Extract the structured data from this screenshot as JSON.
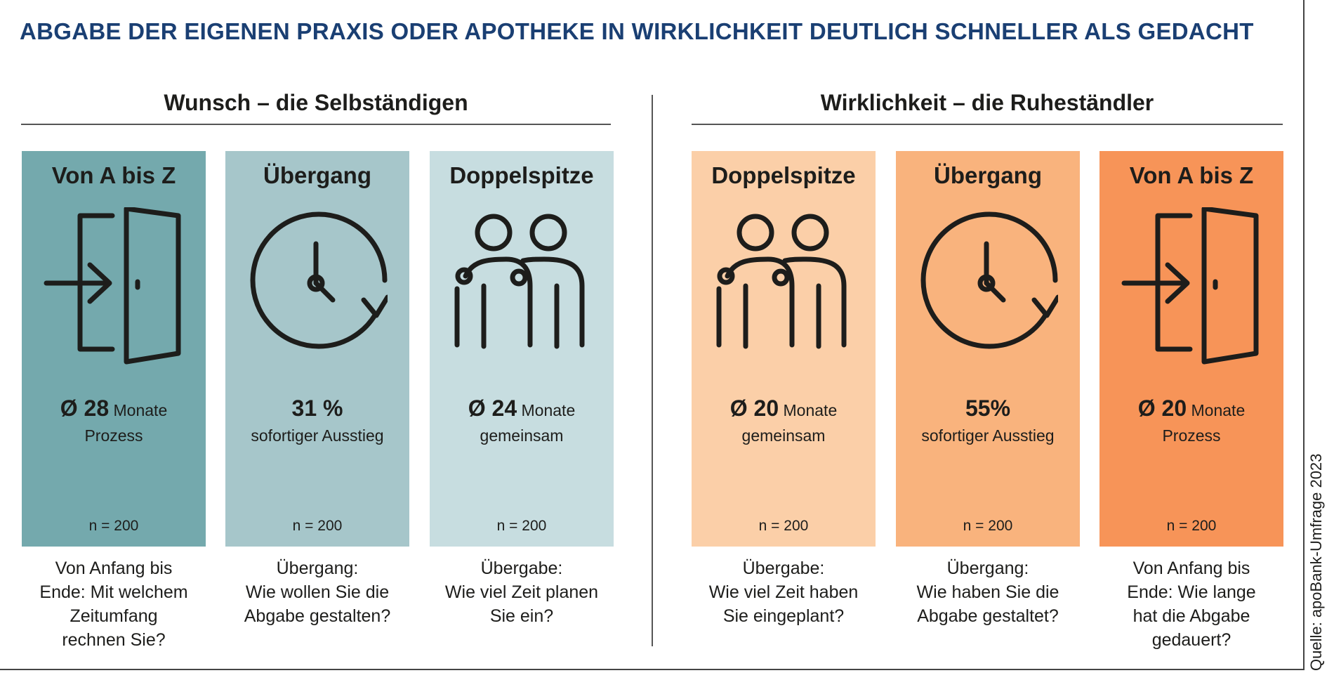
{
  "title": "ABGABE DER EIGENEN PRAXIS ODER APOTHEKE IN WIRKLICHKEIT DEUTLICH SCHNELLER ALS GEDACHT",
  "source": "Quelle: apoBank-Umfrage 2023",
  "colors": {
    "title": "#1a3f73",
    "teal_dark": "#74a9ad",
    "teal_mid": "#a6c6ca",
    "teal_light": "#c7dde0",
    "orange_light": "#fbcfa8",
    "orange_mid": "#f9b37d",
    "orange_dark": "#f79458"
  },
  "chart_data": {
    "type": "table",
    "sections": [
      {
        "label": "Wunsch – die Selbständigen",
        "panels": [
          {
            "title": "Von A bis Z",
            "icon": "door-enter-icon",
            "stat": "Ø 28",
            "unit": "Monate",
            "stat_label": "Prozess",
            "n": "n = 200",
            "question": [
              "Von Anfang bis",
              "Ende: Mit welchem",
              "Zeitumfang",
              "rechnen Sie?"
            ],
            "value": 28
          },
          {
            "title": "Übergang",
            "icon": "clock-icon",
            "stat": "31 %",
            "unit": "",
            "stat_label": "sofortiger Ausstieg",
            "n": "n = 200",
            "question": [
              "Übergang:",
              "Wie wollen Sie die",
              "Abgabe gestalten?"
            ],
            "value": 31
          },
          {
            "title": "Doppelspitze",
            "icon": "two-people-icon",
            "stat": "Ø 24",
            "unit": "Monate",
            "stat_label": "gemeinsam",
            "n": "n = 200",
            "question": [
              "Übergabe:",
              "Wie viel Zeit planen",
              "Sie ein?"
            ],
            "value": 24
          }
        ]
      },
      {
        "label": "Wirklichkeit – die Ruheständler",
        "panels": [
          {
            "title": "Doppelspitze",
            "icon": "two-people-icon",
            "stat": "Ø 20",
            "unit": "Monate",
            "stat_label": "gemeinsam",
            "n": "n = 200",
            "question": [
              "Übergabe:",
              "Wie viel Zeit haben",
              "Sie eingeplant?"
            ],
            "value": 20
          },
          {
            "title": "Übergang",
            "icon": "clock-icon",
            "stat": "55%",
            "unit": "",
            "stat_label": "sofortiger Ausstieg",
            "n": "n = 200",
            "question": [
              "Übergang:",
              "Wie haben Sie die",
              "Abgabe gestaltet?"
            ],
            "value": 55
          },
          {
            "title": "Von A bis Z",
            "icon": "door-enter-icon",
            "stat": "Ø 20",
            "unit": "Monate",
            "stat_label": "Prozess",
            "n": "n = 200",
            "question": [
              "Von Anfang bis",
              "Ende: Wie lange",
              "hat die Abgabe",
              "gedauert?"
            ],
            "value": 20
          }
        ]
      }
    ]
  }
}
